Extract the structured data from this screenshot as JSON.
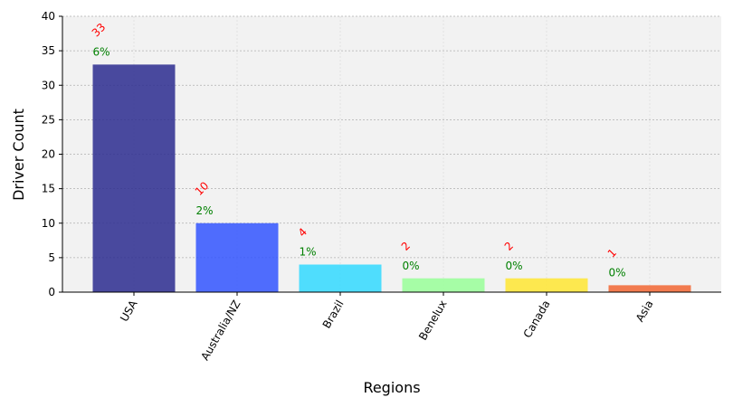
{
  "chart_data": {
    "type": "bar",
    "categories": [
      "USA",
      "Australia/NZ",
      "Brazil",
      "Benelux",
      "Canada",
      "Asia"
    ],
    "values": [
      33,
      10,
      4,
      2,
      2,
      1
    ],
    "count_labels": [
      "33",
      "10",
      "4",
      "2",
      "2",
      "1"
    ],
    "percent_labels": [
      "6%",
      "2%",
      "1%",
      "0%",
      "0%",
      "0%"
    ],
    "colors": [
      "#2b2b8f",
      "#3355ff",
      "#33d9ff",
      "#99ff99",
      "#ffe633",
      "#f26633"
    ],
    "xlabel": "Regions",
    "ylabel": "Driver Count",
    "ylim": [
      0,
      40
    ],
    "yticks": [
      0,
      5,
      10,
      15,
      20,
      25,
      30,
      35,
      40
    ],
    "grid": true,
    "background": "#f2f2f2",
    "count_label_color": "#ff0000",
    "percent_label_color": "#008000"
  }
}
